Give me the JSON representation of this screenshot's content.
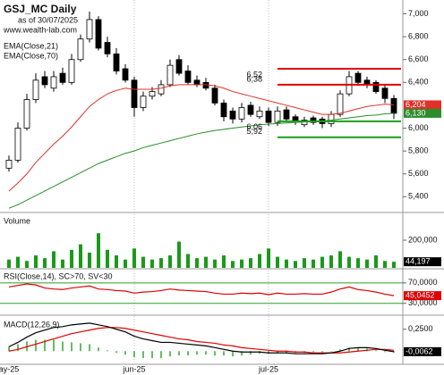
{
  "title": "GSJ_MC Daily",
  "as_of": "as of 30/07/2025",
  "website": "www.wealth-lab.com",
  "chart_data": [
    {
      "type": "candlestick",
      "categories": [
        "ay-25",
        null,
        null,
        null,
        null,
        null,
        null,
        null,
        null,
        null,
        null,
        null,
        null,
        null,
        "jun-25",
        null,
        null,
        null,
        null,
        null,
        null,
        null,
        null,
        null,
        null,
        null,
        null,
        null,
        null,
        "jul-25",
        null,
        null,
        null,
        null,
        null,
        null,
        null,
        null,
        null,
        null,
        null,
        null,
        null,
        null
      ],
      "open": [
        5.65,
        5.72,
        6.0,
        6.25,
        6.45,
        6.35,
        6.48,
        6.4,
        6.6,
        6.78,
        6.95,
        6.75,
        6.65,
        6.52,
        6.42,
        6.18,
        6.28,
        6.3,
        6.38,
        6.6,
        6.5,
        6.42,
        6.4,
        6.35,
        6.22,
        6.15,
        6.08,
        6.2,
        6.1,
        6.15,
        6.05,
        6.16,
        6.1,
        6.03,
        6.09,
        6.08,
        6.04,
        6.12,
        6.3,
        6.48,
        6.42,
        6.4,
        6.35,
        6.26
      ],
      "high": [
        5.76,
        6.05,
        6.3,
        6.48,
        6.5,
        6.5,
        6.53,
        6.65,
        6.82,
        7.02,
        6.98,
        6.8,
        6.7,
        6.56,
        6.45,
        6.32,
        6.36,
        6.42,
        6.6,
        6.64,
        6.55,
        6.46,
        6.44,
        6.38,
        6.25,
        6.18,
        6.22,
        6.23,
        6.19,
        6.18,
        6.19,
        6.19,
        6.12,
        6.1,
        6.11,
        6.1,
        6.15,
        6.33,
        6.5,
        6.5,
        6.45,
        6.42,
        6.38,
        6.29
      ],
      "low": [
        5.62,
        5.7,
        5.98,
        6.22,
        6.35,
        6.32,
        6.38,
        6.38,
        6.58,
        6.75,
        6.68,
        6.62,
        6.47,
        6.4,
        6.1,
        6.15,
        6.25,
        6.28,
        6.36,
        6.46,
        6.38,
        6.36,
        6.33,
        6.2,
        6.06,
        6.04,
        6.05,
        6.1,
        6.08,
        6.02,
        6.02,
        6.06,
        6.03,
        6.01,
        6.03,
        6.0,
        6.01,
        6.1,
        6.28,
        6.37,
        6.35,
        6.3,
        6.22,
        6.08
      ],
      "close": [
        5.72,
        6.0,
        6.25,
        6.42,
        6.38,
        6.45,
        6.4,
        6.6,
        6.78,
        6.95,
        6.7,
        6.65,
        6.5,
        6.42,
        6.18,
        6.28,
        6.32,
        6.38,
        6.55,
        6.48,
        6.4,
        6.38,
        6.35,
        6.22,
        6.1,
        6.08,
        6.18,
        6.12,
        6.15,
        6.05,
        6.15,
        6.08,
        6.06,
        6.07,
        6.05,
        6.04,
        6.12,
        6.3,
        6.45,
        6.4,
        6.38,
        6.32,
        6.26,
        6.13
      ],
      "up_color": "#ffffff",
      "down_color": "#000000",
      "series": [
        {
          "name": "EMA(Close,21)",
          "color": "#e0302a",
          "last_label": "6,204",
          "values": [
            5.45,
            5.52,
            5.6,
            5.7,
            5.78,
            5.86,
            5.93,
            6.01,
            6.1,
            6.19,
            6.25,
            6.3,
            6.33,
            6.35,
            6.34,
            6.34,
            6.34,
            6.35,
            6.37,
            6.38,
            6.38,
            6.38,
            6.38,
            6.37,
            6.35,
            6.32,
            6.3,
            6.28,
            6.26,
            6.24,
            6.22,
            6.2,
            6.18,
            6.16,
            6.14,
            6.12,
            6.12,
            6.13,
            6.15,
            6.17,
            6.19,
            6.2,
            6.21,
            6.204
          ]
        },
        {
          "name": "EMA(Close,70)",
          "color": "#2a8c2a",
          "last_label": "6,130",
          "values": [
            5.3,
            5.33,
            5.37,
            5.41,
            5.45,
            5.49,
            5.53,
            5.57,
            5.61,
            5.65,
            5.69,
            5.72,
            5.75,
            5.78,
            5.8,
            5.83,
            5.85,
            5.87,
            5.89,
            5.91,
            5.93,
            5.95,
            5.965,
            5.98,
            5.99,
            6.0,
            6.01,
            6.02,
            6.03,
            6.035,
            6.04,
            6.045,
            6.05,
            6.055,
            6.06,
            6.065,
            6.07,
            6.08,
            6.09,
            6.1,
            6.11,
            6.115,
            6.125,
            6.13
          ]
        }
      ],
      "levels": [
        {
          "value": 6.52,
          "label": "6,52",
          "color": "#e00000"
        },
        {
          "value": 6.38,
          "label": "6,38",
          "color": "#e00000"
        },
        {
          "value": 6.06,
          "label": "6,06",
          "color": "#1a9e1a"
        },
        {
          "value": 5.92,
          "label": "5,92",
          "color": "#1a9e1a"
        }
      ],
      "ylim": [
        5.27,
        7.09
      ],
      "yticks": [
        {
          "value": 5.4,
          "label": "5,400"
        },
        {
          "value": 5.6,
          "label": "5,600"
        },
        {
          "value": 5.8,
          "label": "5,800"
        },
        {
          "value": 6.0,
          "label": "6,000"
        },
        {
          "value": 6.4,
          "label": "6,400"
        },
        {
          "value": 6.6,
          "label": "6,600"
        },
        {
          "value": 6.8,
          "label": "6,800"
        },
        {
          "value": 7.0,
          "label": "7,000"
        }
      ]
    },
    {
      "type": "bar",
      "title": "Volume",
      "color": "#1a9a1a",
      "last_label": "44,197",
      "values": [
        60000,
        80000,
        50000,
        90000,
        70000,
        120000,
        60000,
        130000,
        170000,
        110000,
        250000,
        130000,
        90000,
        60000,
        140000,
        80000,
        60000,
        70000,
        90000,
        190000,
        100000,
        70000,
        80000,
        60000,
        90000,
        50000,
        60000,
        70000,
        100000,
        140000,
        80000,
        60000,
        50000,
        70000,
        60000,
        80000,
        90000,
        120000,
        80000,
        70000,
        60000,
        90000,
        50000,
        44197
      ],
      "ylim": [
        0,
        387000
      ],
      "yticks": [
        {
          "value": 200000,
          "label": "200,000"
        }
      ]
    },
    {
      "type": "line",
      "title": "RSI(Close,14), SC>70, SV<30",
      "grid": true,
      "grid_color": "#2a9d2a",
      "series": [
        {
          "color": "#e00000",
          "kind": "line",
          "last_label": "45,0452",
          "values": [
            62,
            65,
            68,
            66,
            60,
            58,
            57,
            60,
            62,
            64,
            58,
            57,
            55,
            54,
            50,
            52,
            53,
            55,
            58,
            56,
            55,
            54,
            53,
            50,
            48,
            48,
            50,
            49,
            50,
            47,
            50,
            48,
            48,
            49,
            48,
            48,
            52,
            58,
            62,
            57,
            55,
            52,
            48,
            45.0452
          ]
        }
      ],
      "ylim": [
        12,
        96
      ],
      "yticks": [
        {
          "value": 30,
          "label": "30,0000"
        },
        {
          "value": 70,
          "label": "70,0000"
        }
      ]
    },
    {
      "type": "line",
      "title": "MACD(12,26,9)",
      "grid": false,
      "series": [
        {
          "color": "#2fa82f",
          "kind": "bar",
          "values": [
            0.05,
            0.08,
            0.11,
            0.13,
            0.13,
            0.13,
            0.11,
            0.1,
            0.09,
            0.08,
            0.04,
            0.01,
            -0.02,
            -0.04,
            -0.07,
            -0.08,
            -0.08,
            -0.08,
            -0.06,
            -0.05,
            -0.05,
            -0.04,
            -0.04,
            -0.05,
            -0.05,
            -0.06,
            -0.05,
            -0.04,
            -0.03,
            -0.03,
            -0.02,
            -0.02,
            -0.02,
            -0.02,
            -0.01,
            -0.01,
            0.0,
            0.02,
            0.04,
            0.04,
            0.03,
            0.01,
            -0.01,
            -0.0162
          ]
        },
        {
          "color": "#e00000",
          "kind": "line",
          "values": [
            0.0,
            0.02,
            0.05,
            0.08,
            0.11,
            0.14,
            0.17,
            0.2,
            0.22,
            0.24,
            0.26,
            0.27,
            0.27,
            0.26,
            0.24,
            0.22,
            0.2,
            0.18,
            0.16,
            0.14,
            0.13,
            0.11,
            0.1,
            0.09,
            0.07,
            0.06,
            0.04,
            0.03,
            0.02,
            0.01,
            0.0,
            0.0,
            -0.01,
            -0.01,
            -0.02,
            -0.02,
            -0.02,
            -0.02,
            -0.01,
            0.0,
            0.01,
            0.02,
            0.02,
            0.01
          ]
        },
        {
          "color": "#000000",
          "kind": "line",
          "last_label": "-0,0062",
          "values": [
            0.05,
            0.1,
            0.16,
            0.21,
            0.24,
            0.27,
            0.28,
            0.3,
            0.31,
            0.32,
            0.3,
            0.28,
            0.25,
            0.22,
            0.17,
            0.14,
            0.12,
            0.1,
            0.1,
            0.09,
            0.08,
            0.07,
            0.06,
            0.04,
            0.02,
            0.0,
            -0.01,
            -0.01,
            -0.01,
            -0.02,
            -0.02,
            -0.02,
            -0.03,
            -0.03,
            -0.03,
            -0.03,
            -0.02,
            0.0,
            0.03,
            0.04,
            0.04,
            0.03,
            0.01,
            -0.0062
          ]
        }
      ],
      "ylim": [
        -0.14,
        0.38
      ],
      "yticks": [
        {
          "value": 0.25,
          "label": "0,2500"
        }
      ]
    }
  ]
}
